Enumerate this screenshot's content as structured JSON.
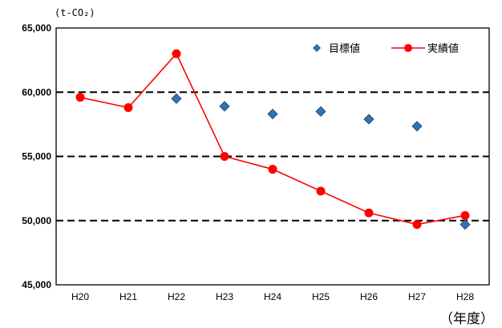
{
  "chart_data": {
    "type": "line",
    "title": "",
    "ylabel_unit": "(t-CO₂)",
    "xlabel": "（年度）",
    "categories": [
      "H20",
      "H21",
      "H22",
      "H23",
      "H24",
      "H25",
      "H26",
      "H27",
      "H28"
    ],
    "ylim": [
      45000,
      65000
    ],
    "yticks": [
      45000,
      50000,
      55000,
      60000,
      65000
    ],
    "ytick_labels": [
      "45,000",
      "50,000",
      "55,000",
      "60,000",
      "65,000"
    ],
    "gridlines": "dashed at 50,000 / 55,000 / 60,000",
    "legend_position": "top-right",
    "series": [
      {
        "name": "目標値",
        "marker": "diamond",
        "line": false,
        "color": "#2E75B6",
        "values": [
          null,
          null,
          59500,
          58900,
          58300,
          58500,
          57900,
          57350,
          49700
        ]
      },
      {
        "name": "実績値",
        "marker": "circle",
        "line": true,
        "color": "#FF0000",
        "values": [
          59600,
          58800,
          63000,
          55000,
          54000,
          52300,
          50600,
          49700,
          50400
        ]
      }
    ]
  }
}
